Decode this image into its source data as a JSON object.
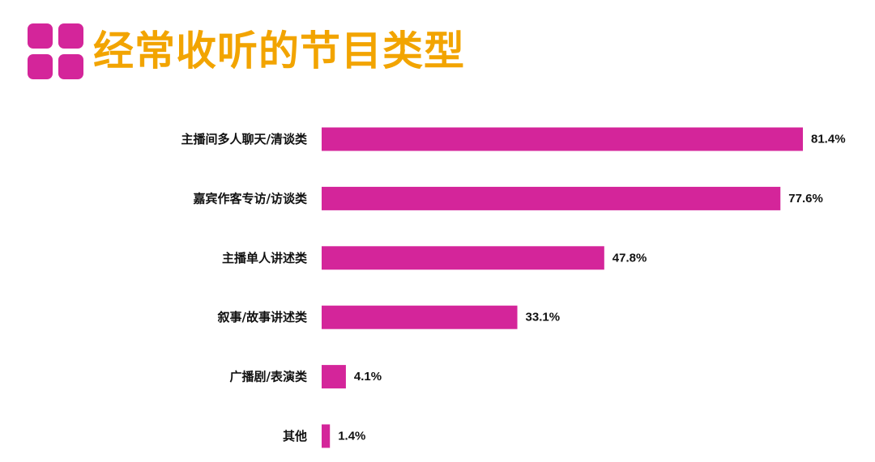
{
  "header": {
    "title": "经常收听的节目类型",
    "icon": "four-squares-icon"
  },
  "colors": {
    "accent": "#d4259a",
    "title": "#f2a400",
    "bar": "#d4259a",
    "text": "#111111"
  },
  "chart_data": {
    "type": "bar",
    "orientation": "horizontal",
    "categories": [
      "主播间多人聊天/清谈类",
      "嘉宾作客专访/访谈类",
      "主播单人讲述类",
      "叙事/故事讲述类",
      "广播剧/表演类",
      "其他"
    ],
    "values": [
      81.4,
      77.6,
      47.8,
      33.1,
      4.1,
      1.4
    ],
    "value_labels": [
      "81.4%",
      "77.6%",
      "47.8%",
      "33.1%",
      "4.1%",
      "1.4%"
    ],
    "unit": "%",
    "xlim": [
      0,
      81.4
    ],
    "grid": false,
    "legend": "none"
  }
}
